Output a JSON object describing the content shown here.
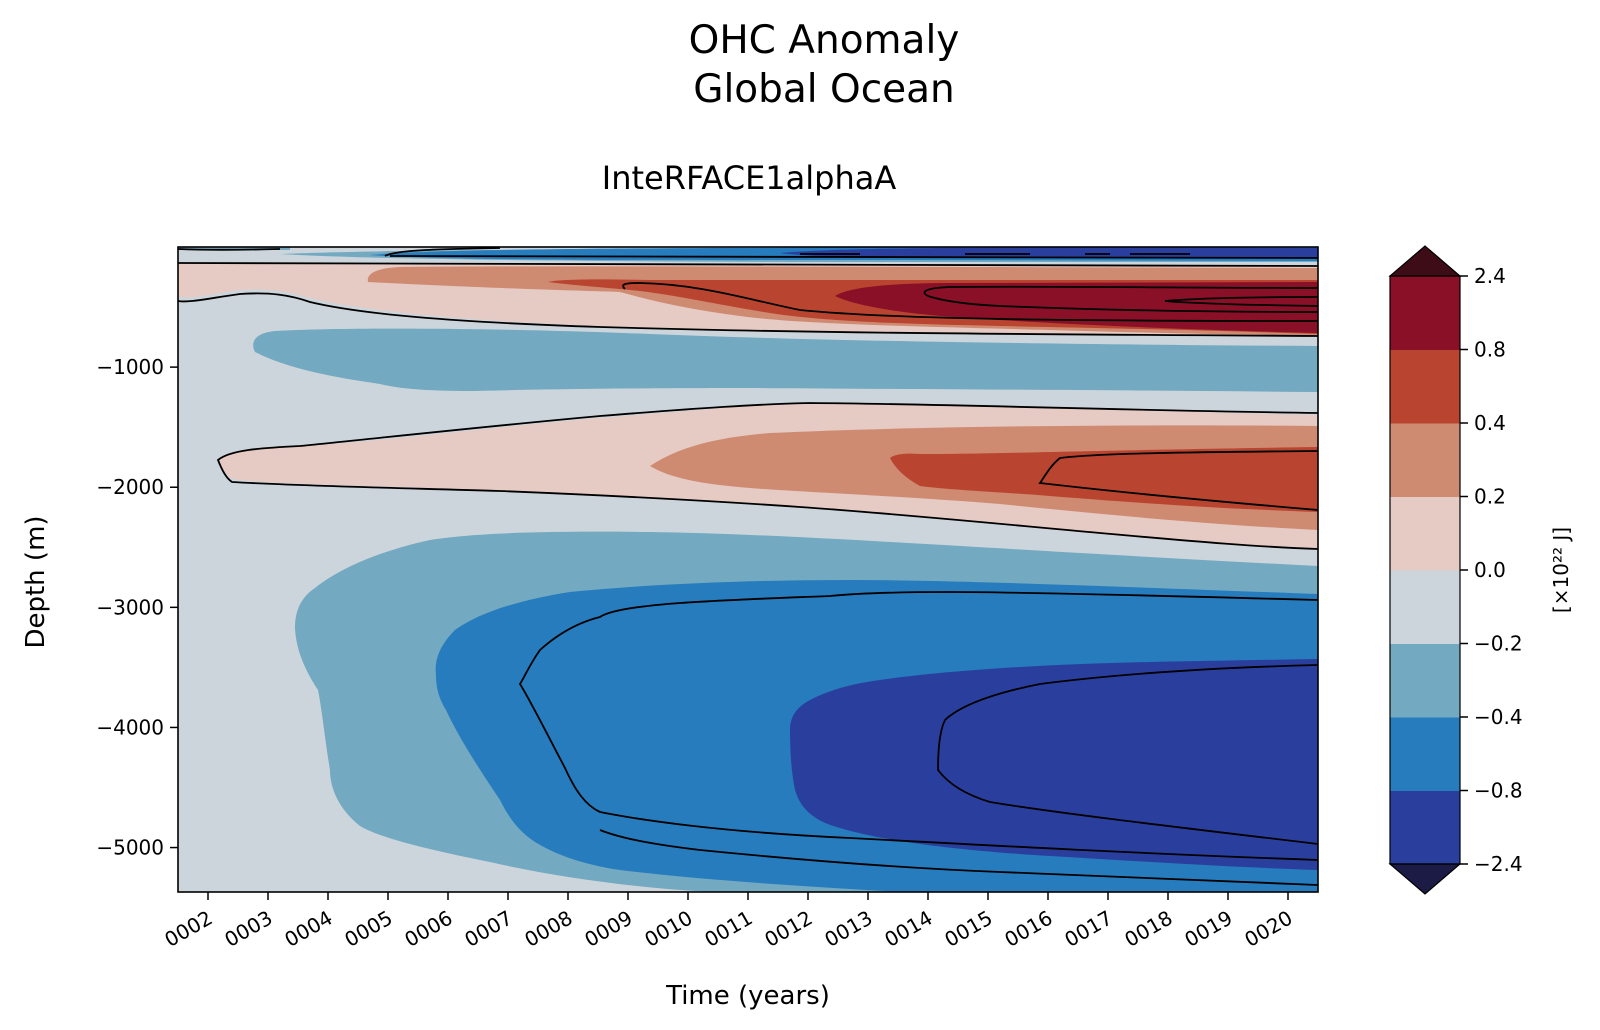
{
  "chart_data": {
    "type": "contourf",
    "title": [
      "OHC Anomaly",
      "Global Ocean"
    ],
    "subtitle": "InteRFACE1alphaA",
    "xlabel": "Time (years)",
    "ylabel": "Depth (m)",
    "x_ticks": [
      "0002",
      "0003",
      "0004",
      "0005",
      "0006",
      "0007",
      "0008",
      "0009",
      "0010",
      "0011",
      "0012",
      "0013",
      "0014",
      "0015",
      "0016",
      "0017",
      "0018",
      "0019",
      "0020"
    ],
    "x_range": [
      1.5,
      20.5
    ],
    "y_ticks": [
      -1000,
      -2000,
      -3000,
      -4000,
      -5000
    ],
    "y_range": [
      -5370,
      0
    ],
    "colorbar": {
      "label": "[×10²² J]",
      "levels": [
        -2.4,
        -0.8,
        -0.4,
        -0.2,
        0.0,
        0.2,
        0.4,
        0.8,
        2.4
      ],
      "tick_labels": [
        "−2.4",
        "−0.8",
        "−0.4",
        "−0.2",
        "0.0",
        "0.2",
        "0.4",
        "0.8",
        "2.4"
      ],
      "colors": [
        "#2a3f9d",
        "#267cbd",
        "#73a9c1",
        "#ccd5dc",
        "#e6cac4",
        "#cf8a72",
        "#b94530",
        "#8a1027"
      ],
      "extend_colors": {
        "under": "#1c1b45",
        "over": "#3d0c16"
      }
    }
  }
}
